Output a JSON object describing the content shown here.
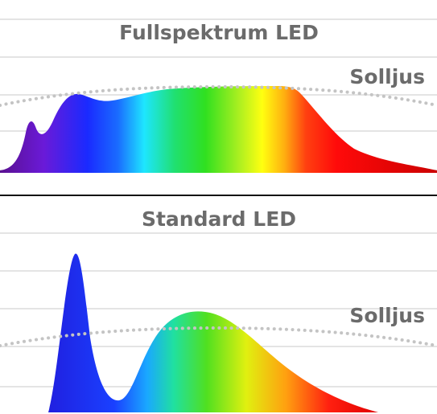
{
  "panels": [
    {
      "title": "Fullspektrum LED",
      "reference_label": "Solljus"
    },
    {
      "title": "Standard LED",
      "reference_label": "Solljus"
    }
  ]
}
